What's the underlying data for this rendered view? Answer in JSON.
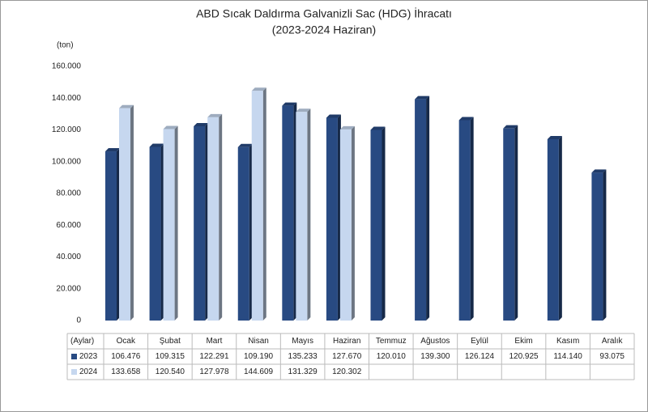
{
  "chart_data": {
    "type": "bar",
    "title": "ABD Sıcak Daldırma Galvanizli Sac (HDG) İhracatı",
    "subtitle": "(2023-2024 Haziran)",
    "y_label": "(ton)",
    "table_header": "(Aylar)",
    "categories": [
      "Ocak",
      "Şubat",
      "Mart",
      "Nisan",
      "Mayıs",
      "Haziran",
      "Temmuz",
      "Ağustos",
      "Eylül",
      "Ekim",
      "Kasım",
      "Aralık"
    ],
    "series": [
      {
        "name": "2023",
        "color": "#284a82",
        "values": [
          106476,
          109315,
          122291,
          109190,
          135233,
          127670,
          120010,
          139300,
          126124,
          120925,
          114140,
          93075
        ],
        "value_labels": [
          "106.476",
          "109.315",
          "122.291",
          "109.190",
          "135.233",
          "127.670",
          "120.010",
          "139.300",
          "126.124",
          "120.925",
          "114.140",
          "93.075"
        ]
      },
      {
        "name": "2024",
        "color": "#c6d7ef",
        "values": [
          133658,
          120540,
          127978,
          144609,
          131329,
          120302,
          null,
          null,
          null,
          null,
          null,
          null
        ],
        "value_labels": [
          "133.658",
          "120.540",
          "127.978",
          "144.609",
          "131.329",
          "120.302",
          null,
          null,
          null,
          null,
          null,
          null
        ]
      }
    ],
    "ylim": [
      0,
      160000
    ],
    "yticks": [
      0,
      {
        "value": 20000,
        "label": "20.000"
      },
      {
        "value": 40000,
        "label": "40.000"
      },
      {
        "value": 60000,
        "label": "60.000"
      },
      {
        "value": 80000,
        "label": "80.000"
      },
      {
        "value": 100000,
        "label": "100.000"
      },
      {
        "value": 120000,
        "label": "120.000"
      },
      {
        "value": 140000,
        "label": "140.000"
      },
      {
        "value": 160000,
        "label": "160.000"
      }
    ],
    "grid": false
  }
}
